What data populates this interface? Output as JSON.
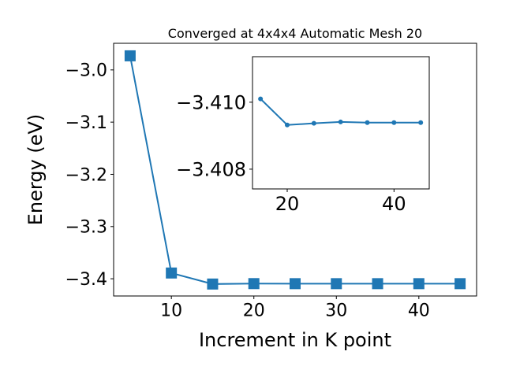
{
  "chart_data": [
    {
      "type": "line",
      "title": "Converged at 4x4x4 Automatic Mesh 20",
      "x_label": "Increment in K point",
      "y_label": "Energy (eV)",
      "x": [
        5,
        10,
        15,
        20,
        25,
        30,
        35,
        40,
        45
      ],
      "series": [
        {
          "color": "#1f77b4",
          "marker": "square",
          "values": [
            -2.973,
            -3.389,
            -3.4101,
            -3.4093,
            -3.4094,
            -3.4094,
            -3.4094,
            -3.4094,
            -3.4094
          ]
        }
      ],
      "xlim": [
        3,
        47
      ],
      "xticks": [
        10,
        20,
        30,
        40
      ],
      "ylim": [
        -3.433,
        -2.949
      ],
      "yticks": [
        {
          "value": -3.0,
          "label": "−3.0"
        },
        {
          "value": -3.1,
          "label": "−3.1"
        },
        {
          "value": -3.2,
          "label": "−3.2"
        },
        {
          "value": -3.3,
          "label": "−3.3"
        },
        {
          "value": -3.4,
          "label": "−3.4"
        }
      ]
    },
    {
      "type": "line",
      "x": [
        15,
        20,
        25,
        30,
        35,
        40,
        45
      ],
      "series": [
        {
          "color": "#1f77b4",
          "marker": "circle",
          "values": [
            -3.4101,
            -3.40932,
            -3.40937,
            -3.40941,
            -3.40939,
            -3.40939,
            -3.40939
          ]
        }
      ],
      "xlim": [
        13.5,
        46.6
      ],
      "xticks": [
        20,
        40
      ],
      "ylim": [
        -3.40741,
        -3.41136
      ],
      "yticks": [
        {
          "value": -3.41,
          "label": "−3.410"
        },
        {
          "value": -3.408,
          "label": "−3.408"
        }
      ]
    }
  ]
}
